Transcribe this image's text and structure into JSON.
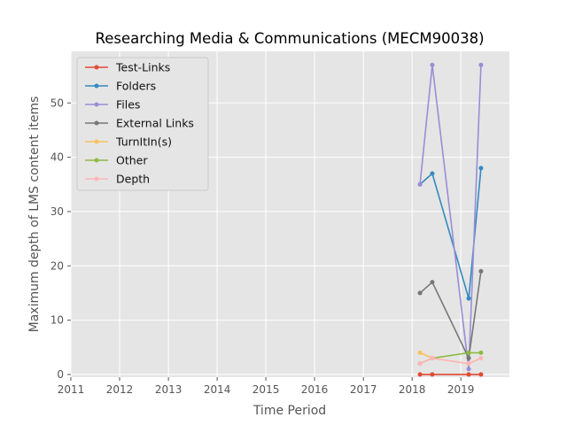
{
  "chart_data": {
    "type": "line",
    "title": "Researching Media & Communications (MECM90038)",
    "xlabel": "Time Period",
    "ylabel": "Maximum depth of LMS content items",
    "xlim": [
      "2011-01-01",
      "2019-12-31"
    ],
    "ylim": [
      -0.5,
      59.5
    ],
    "x_ticks": [
      "2011",
      "2012",
      "2013",
      "2014",
      "2015",
      "2016",
      "2017",
      "2018",
      "2019"
    ],
    "y_ticks": [
      0,
      10,
      20,
      30,
      40,
      50
    ],
    "grid": true,
    "legend_position": "upper-left",
    "x": [
      "2018-03-01",
      "2018-06-01",
      "2019-03-01",
      "2019-06-01"
    ],
    "series": [
      {
        "name": "Test-Links",
        "color": "#E24A33",
        "values": [
          0,
          0,
          0,
          0
        ]
      },
      {
        "name": "Folders",
        "color": "#348ABD",
        "values": [
          35,
          37,
          14,
          38
        ]
      },
      {
        "name": "Files",
        "color": "#988ED5",
        "values": [
          35,
          57,
          1,
          57
        ]
      },
      {
        "name": "External Links",
        "color": "#777777",
        "values": [
          15,
          17,
          3,
          19
        ]
      },
      {
        "name": "TurnItIn(s)",
        "color": "#FBC15E",
        "values": [
          4,
          3,
          2,
          3
        ]
      },
      {
        "name": "Other",
        "color": "#8EBA42",
        "values": [
          2,
          3,
          4,
          4
        ]
      },
      {
        "name": "Depth",
        "color": "#FFB5B8",
        "values": [
          2,
          3,
          2,
          3
        ]
      }
    ]
  }
}
